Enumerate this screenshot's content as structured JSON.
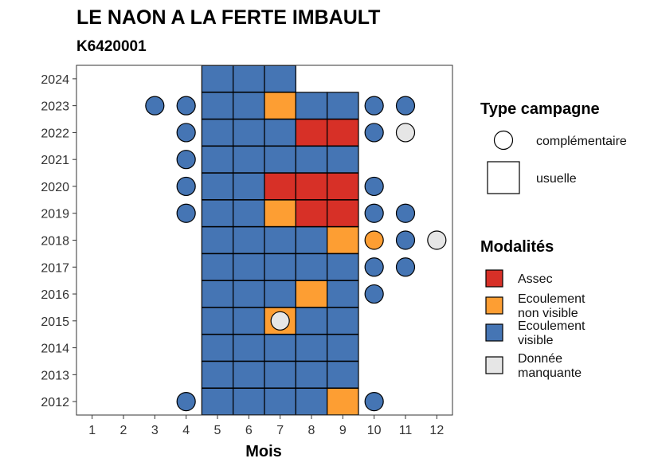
{
  "chart_data": {
    "type": "heatmap",
    "title": "LE NAON A LA FERTE IMBAULT",
    "subtitle": "K6420001",
    "xlabel": "Mois",
    "ylabel": "",
    "x_ticks": [
      1,
      2,
      3,
      4,
      5,
      6,
      7,
      8,
      9,
      10,
      11,
      12
    ],
    "y_ticks": [
      2012,
      2013,
      2014,
      2015,
      2016,
      2017,
      2018,
      2019,
      2020,
      2021,
      2022,
      2023,
      2024
    ],
    "xlim": [
      0.5,
      12.5
    ],
    "ylim": [
      2011.5,
      2024.5
    ],
    "grid": false,
    "colors": {
      "Assec": "#d73027",
      "Ecoulement non visible": "#fd9e33",
      "Ecoulement visible": "#4575b4",
      "Donnée manquante": "#e6e6e6"
    },
    "legend_shape": {
      "title": "Type campagne",
      "items": [
        {
          "label": "complémentaire",
          "shape": "circle"
        },
        {
          "label": "usuelle",
          "shape": "square"
        }
      ]
    },
    "legend_fill": {
      "title": "Modalités",
      "items": [
        {
          "key": "Assec",
          "lines": [
            "Assec"
          ]
        },
        {
          "key": "Ecoulement non visible",
          "lines": [
            "Ecoulement",
            "non visible"
          ]
        },
        {
          "key": "Ecoulement visible",
          "lines": [
            "Ecoulement",
            "visible"
          ]
        },
        {
          "key": "Donnée manquante",
          "lines": [
            "Donnée",
            "manquante"
          ]
        }
      ]
    },
    "usuelle": [
      {
        "year": 2024,
        "months": {
          "5": "Ecoulement visible",
          "6": "Ecoulement visible",
          "7": "Ecoulement visible"
        }
      },
      {
        "year": 2023,
        "months": {
          "5": "Ecoulement visible",
          "6": "Ecoulement visible",
          "7": "Ecoulement non visible",
          "8": "Ecoulement visible",
          "9": "Ecoulement visible"
        }
      },
      {
        "year": 2022,
        "months": {
          "5": "Ecoulement visible",
          "6": "Ecoulement visible",
          "7": "Ecoulement visible",
          "8": "Assec",
          "9": "Assec"
        }
      },
      {
        "year": 2021,
        "months": {
          "5": "Ecoulement visible",
          "6": "Ecoulement visible",
          "7": "Ecoulement visible",
          "8": "Ecoulement visible",
          "9": "Ecoulement visible"
        }
      },
      {
        "year": 2020,
        "months": {
          "5": "Ecoulement visible",
          "6": "Ecoulement visible",
          "7": "Assec",
          "8": "Assec",
          "9": "Assec"
        }
      },
      {
        "year": 2019,
        "months": {
          "5": "Ecoulement visible",
          "6": "Ecoulement visible",
          "7": "Ecoulement non visible",
          "8": "Assec",
          "9": "Assec"
        }
      },
      {
        "year": 2018,
        "months": {
          "5": "Ecoulement visible",
          "6": "Ecoulement visible",
          "7": "Ecoulement visible",
          "8": "Ecoulement visible",
          "9": "Ecoulement non visible"
        }
      },
      {
        "year": 2017,
        "months": {
          "5": "Ecoulement visible",
          "6": "Ecoulement visible",
          "7": "Ecoulement visible",
          "8": "Ecoulement visible",
          "9": "Ecoulement visible"
        }
      },
      {
        "year": 2016,
        "months": {
          "5": "Ecoulement visible",
          "6": "Ecoulement visible",
          "7": "Ecoulement visible",
          "8": "Ecoulement non visible",
          "9": "Ecoulement visible"
        }
      },
      {
        "year": 2015,
        "months": {
          "5": "Ecoulement visible",
          "6": "Ecoulement visible",
          "7": "Ecoulement non visible",
          "8": "Ecoulement visible",
          "9": "Ecoulement visible"
        }
      },
      {
        "year": 2014,
        "months": {
          "5": "Ecoulement visible",
          "6": "Ecoulement visible",
          "7": "Ecoulement visible",
          "8": "Ecoulement visible",
          "9": "Ecoulement visible"
        }
      },
      {
        "year": 2013,
        "months": {
          "5": "Ecoulement visible",
          "6": "Ecoulement visible",
          "7": "Ecoulement visible",
          "8": "Ecoulement visible",
          "9": "Ecoulement visible"
        }
      },
      {
        "year": 2012,
        "months": {
          "5": "Ecoulement visible",
          "6": "Ecoulement visible",
          "7": "Ecoulement visible",
          "8": "Ecoulement visible",
          "9": "Ecoulement non visible"
        }
      }
    ],
    "complementaire": [
      {
        "year": 2023,
        "month": 3,
        "modalite": "Ecoulement visible"
      },
      {
        "year": 2023,
        "month": 4,
        "modalite": "Ecoulement visible"
      },
      {
        "year": 2023,
        "month": 10,
        "modalite": "Ecoulement visible"
      },
      {
        "year": 2023,
        "month": 11,
        "modalite": "Ecoulement visible"
      },
      {
        "year": 2022,
        "month": 4,
        "modalite": "Ecoulement visible"
      },
      {
        "year": 2022,
        "month": 10,
        "modalite": "Ecoulement visible"
      },
      {
        "year": 2022,
        "month": 11,
        "modalite": "Donnée manquante"
      },
      {
        "year": 2021,
        "month": 4,
        "modalite": "Ecoulement visible"
      },
      {
        "year": 2020,
        "month": 4,
        "modalite": "Ecoulement visible"
      },
      {
        "year": 2020,
        "month": 10,
        "modalite": "Ecoulement visible"
      },
      {
        "year": 2019,
        "month": 4,
        "modalite": "Ecoulement visible"
      },
      {
        "year": 2019,
        "month": 10,
        "modalite": "Ecoulement visible"
      },
      {
        "year": 2019,
        "month": 11,
        "modalite": "Ecoulement visible"
      },
      {
        "year": 2018,
        "month": 10,
        "modalite": "Ecoulement non visible"
      },
      {
        "year": 2018,
        "month": 11,
        "modalite": "Ecoulement visible"
      },
      {
        "year": 2018,
        "month": 12,
        "modalite": "Donnée manquante"
      },
      {
        "year": 2017,
        "month": 10,
        "modalite": "Ecoulement visible"
      },
      {
        "year": 2017,
        "month": 11,
        "modalite": "Ecoulement visible"
      },
      {
        "year": 2016,
        "month": 10,
        "modalite": "Ecoulement visible"
      },
      {
        "year": 2015,
        "month": 7,
        "modalite": "Donnée manquante"
      },
      {
        "year": 2012,
        "month": 4,
        "modalite": "Ecoulement visible"
      },
      {
        "year": 2012,
        "month": 10,
        "modalite": "Ecoulement visible"
      }
    ]
  }
}
